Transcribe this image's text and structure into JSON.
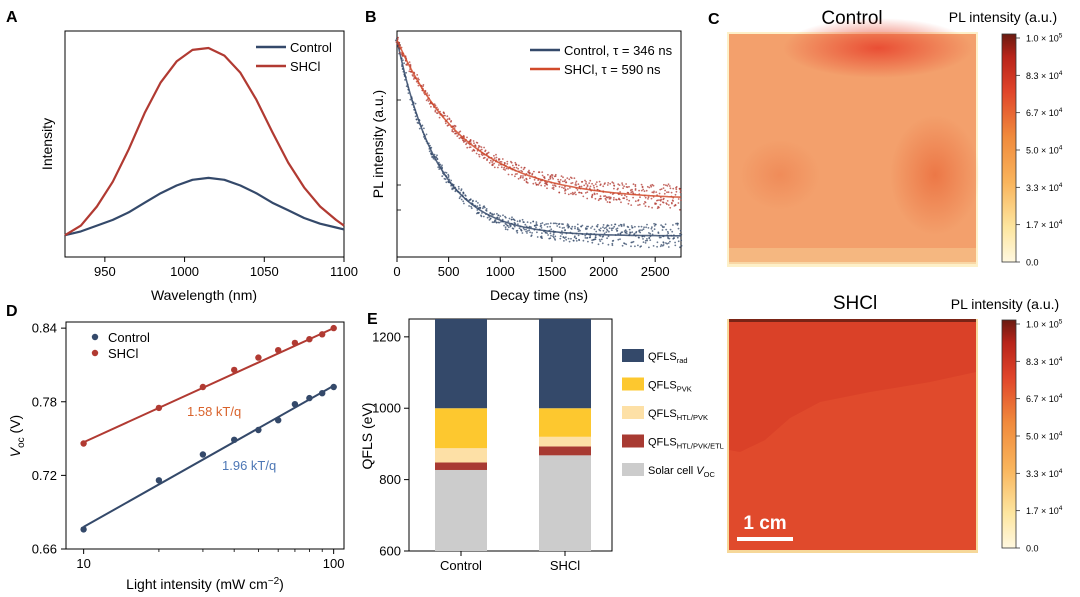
{
  "panels": {
    "A": {
      "letter": "A",
      "chart_type": "line",
      "xlabel": "Wavelength (nm)",
      "ylabel": "Intensity",
      "xlim": [
        925,
        1100
      ],
      "xticks": [
        "950",
        "1000",
        "1050",
        "1100"
      ],
      "legend": {
        "placement": "top-right",
        "items": [
          "Control",
          "SHCl"
        ]
      }
    },
    "B": {
      "letter": "B",
      "chart_type": "scatter",
      "xlabel": "Decay time (ns)",
      "ylabel": "PL intensity (a.u.)",
      "xlim": [
        0,
        2750
      ],
      "xticks": [
        "0",
        "500",
        "1000",
        "1500",
        "2000",
        "2500"
      ],
      "legend": {
        "placement": "top-right",
        "items": [
          "Control, τ = 346 ns",
          "SHCl, τ = 590  ns"
        ]
      }
    },
    "C": {
      "letter": "C",
      "maps": [
        {
          "title": "Control",
          "colorbar_label": "PL intensity (a.u.)"
        },
        {
          "title": "SHCl",
          "colorbar_label": "PL intensity (a.u.)"
        }
      ],
      "colorbar_ticks": [
        {
          "mant": "1.0 × 10",
          "exp": "5"
        },
        {
          "mant": "8.3 × 10",
          "exp": "4"
        },
        {
          "mant": "6.7 × 10",
          "exp": "4"
        },
        {
          "mant": "5.0 × 10",
          "exp": "4"
        },
        {
          "mant": "3.3 × 10",
          "exp": "4"
        },
        {
          "mant": "1.7 × 10",
          "exp": "4"
        },
        {
          "mant": "0.0",
          "exp": ""
        }
      ],
      "scale_bar": "1 cm"
    },
    "D": {
      "letter": "D",
      "chart_type": "scatter",
      "xlabel_main": "Light intensity (mW cm",
      "xlabel_sup": "−2",
      "xlabel_end": ")",
      "ylabel_main": "V",
      "ylabel_sub": "oc",
      "ylabel_end": " (V)",
      "log_x": true,
      "xlim": [
        8.5,
        110
      ],
      "ylim": [
        0.66,
        0.845
      ],
      "xticks": [
        "10",
        "100"
      ],
      "yticks": [
        "0.66",
        "0.72",
        "0.78",
        "0.84"
      ],
      "legend": {
        "placement": "top-left",
        "items": [
          "Control",
          "SHCl"
        ]
      },
      "annotations": [
        "1.58 kT/q",
        "1.96 kT/q"
      ]
    },
    "E": {
      "letter": "E",
      "chart_type": "bar",
      "ylabel": "QFLS (eV)",
      "ylim": [
        600,
        1250
      ],
      "yticks": [
        "600",
        "800",
        "1000",
        "1200"
      ],
      "categories": [
        "Control",
        "SHCl"
      ],
      "legend": [
        {
          "main": "QFLS",
          "sub": "rad"
        },
        {
          "main": "QFLS",
          "sub": "PVK"
        },
        {
          "main": "QFLS",
          "sub": "HTL/PVK"
        },
        {
          "main": "QFLS",
          "sub": "HTL/PVK/ETL"
        },
        {
          "main": "Solar cell ",
          "italic": "V",
          "sub": "OC"
        }
      ]
    }
  },
  "colors": {
    "control": "#34496a",
    "shcl": "#b13a32",
    "shcl_fit_b": "#d14a2a",
    "annot_shcl": "#d9622b",
    "annot_control": "#4d77b5",
    "qfls_rad": "#34496a",
    "qfls_pvk": "#fdc82f",
    "qfls_htl_pvk": "#fde0a6",
    "qfls_htl_pvk_etl": "#a83a32",
    "solar_voc": "#cccccc"
  },
  "chart_data": [
    {
      "panel": "A",
      "type": "line",
      "xlabel": "Wavelength (nm)",
      "ylabel": "Intensity",
      "xlim": [
        925,
        1100
      ],
      "ylim": [
        0,
        1.05
      ],
      "grid": false,
      "series": [
        {
          "name": "Control",
          "x": [
            925,
            935,
            945,
            955,
            965,
            975,
            985,
            995,
            1005,
            1015,
            1025,
            1035,
            1045,
            1055,
            1065,
            1075,
            1085,
            1095,
            1100
          ],
          "values": [
            0.02,
            0.04,
            0.07,
            0.1,
            0.14,
            0.19,
            0.24,
            0.28,
            0.31,
            0.32,
            0.31,
            0.28,
            0.24,
            0.19,
            0.15,
            0.11,
            0.08,
            0.06,
            0.05
          ]
        },
        {
          "name": "SHCl",
          "x": [
            925,
            935,
            945,
            955,
            965,
            975,
            985,
            995,
            1005,
            1015,
            1025,
            1035,
            1045,
            1055,
            1065,
            1075,
            1085,
            1095,
            1100
          ],
          "values": [
            0.02,
            0.07,
            0.17,
            0.3,
            0.47,
            0.66,
            0.82,
            0.93,
            0.99,
            1.0,
            0.96,
            0.87,
            0.73,
            0.56,
            0.4,
            0.27,
            0.17,
            0.1,
            0.07
          ]
        }
      ]
    },
    {
      "panel": "B",
      "type": "scatter",
      "xlabel": "Decay time (ns)",
      "ylabel": "PL intensity (a.u.)",
      "xlim": [
        0,
        2750
      ],
      "grid": false,
      "series": [
        {
          "name": "Control, τ = 346 ns",
          "tau_ns": 346
        },
        {
          "name": "SHCl, τ = 590  ns",
          "tau_ns": 590
        }
      ]
    },
    {
      "panel": "D",
      "type": "scatter",
      "xlabel": "Light intensity (mW cm−2)",
      "ylabel": "Voc (V)",
      "xscale": "log",
      "xlim": [
        8.5,
        110
      ],
      "ylim": [
        0.66,
        0.845
      ],
      "grid": false,
      "series": [
        {
          "name": "Control",
          "x": [
            10,
            20,
            30,
            40,
            50,
            60,
            70,
            80,
            90,
            100
          ],
          "values": [
            0.676,
            0.716,
            0.737,
            0.749,
            0.757,
            0.765,
            0.778,
            0.783,
            0.787,
            0.792
          ]
        },
        {
          "name": "SHCl",
          "x": [
            10,
            20,
            30,
            40,
            50,
            60,
            70,
            80,
            90,
            100
          ],
          "values": [
            0.746,
            0.775,
            0.792,
            0.806,
            0.816,
            0.822,
            0.828,
            0.831,
            0.835,
            0.84
          ]
        }
      ],
      "fits": [
        {
          "series": "SHCl",
          "x": [
            10,
            100
          ],
          "values": [
            0.747,
            0.84
          ],
          "label": "1.58 kT/q"
        },
        {
          "series": "Control",
          "x": [
            10,
            100
          ],
          "values": [
            0.678,
            0.793
          ],
          "label": "1.96 kT/q"
        }
      ]
    },
    {
      "panel": "E",
      "type": "bar",
      "ylabel": "QFLS (eV)",
      "ylim": [
        600,
        1250
      ],
      "categories": [
        "Control",
        "SHCl"
      ],
      "stacked": true,
      "segments": [
        {
          "name": "Solar cell VOC",
          "bottom": [
            600,
            600
          ],
          "top": [
            827,
            868
          ]
        },
        {
          "name": "QFLSHTL/PVK/ETL",
          "bottom": [
            827,
            868
          ],
          "top": [
            848,
            893
          ]
        },
        {
          "name": "QFLSHTL/PVK",
          "bottom": [
            848,
            893
          ],
          "top": [
            888,
            920
          ]
        },
        {
          "name": "QFLSPVK",
          "bottom": [
            888,
            920
          ],
          "top": [
            1000,
            1000
          ]
        },
        {
          "name": "QFLSrad",
          "bottom": [
            1000,
            1000
          ],
          "top": [
            1250,
            1250
          ]
        }
      ]
    }
  ]
}
